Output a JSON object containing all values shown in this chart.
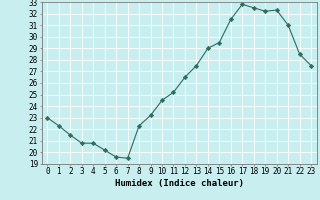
{
  "x": [
    0,
    1,
    2,
    3,
    4,
    5,
    6,
    7,
    8,
    9,
    10,
    11,
    12,
    13,
    14,
    15,
    16,
    17,
    18,
    19,
    20,
    21,
    22,
    23
  ],
  "y": [
    23.0,
    22.3,
    21.5,
    20.8,
    20.8,
    20.2,
    19.6,
    19.5,
    22.3,
    23.2,
    24.5,
    25.2,
    26.5,
    27.5,
    29.0,
    29.5,
    31.5,
    32.8,
    32.5,
    32.2,
    32.3,
    31.0,
    28.5,
    27.5
  ],
  "xlabel": "Humidex (Indice chaleur)",
  "ylabel": "",
  "ylim": [
    19,
    33
  ],
  "xlim": [
    -0.5,
    23.5
  ],
  "yticks": [
    19,
    20,
    21,
    22,
    23,
    24,
    25,
    26,
    27,
    28,
    29,
    30,
    31,
    32,
    33
  ],
  "xticks": [
    0,
    1,
    2,
    3,
    4,
    5,
    6,
    7,
    8,
    9,
    10,
    11,
    12,
    13,
    14,
    15,
    16,
    17,
    18,
    19,
    20,
    21,
    22,
    23
  ],
  "line_color": "#2d6e5e",
  "marker": "D",
  "markersize": 2.2,
  "bg_color": "#c8eef0",
  "grid_color": "#ffffff",
  "tick_fontsize": 5.5,
  "xlabel_fontsize": 6.5
}
